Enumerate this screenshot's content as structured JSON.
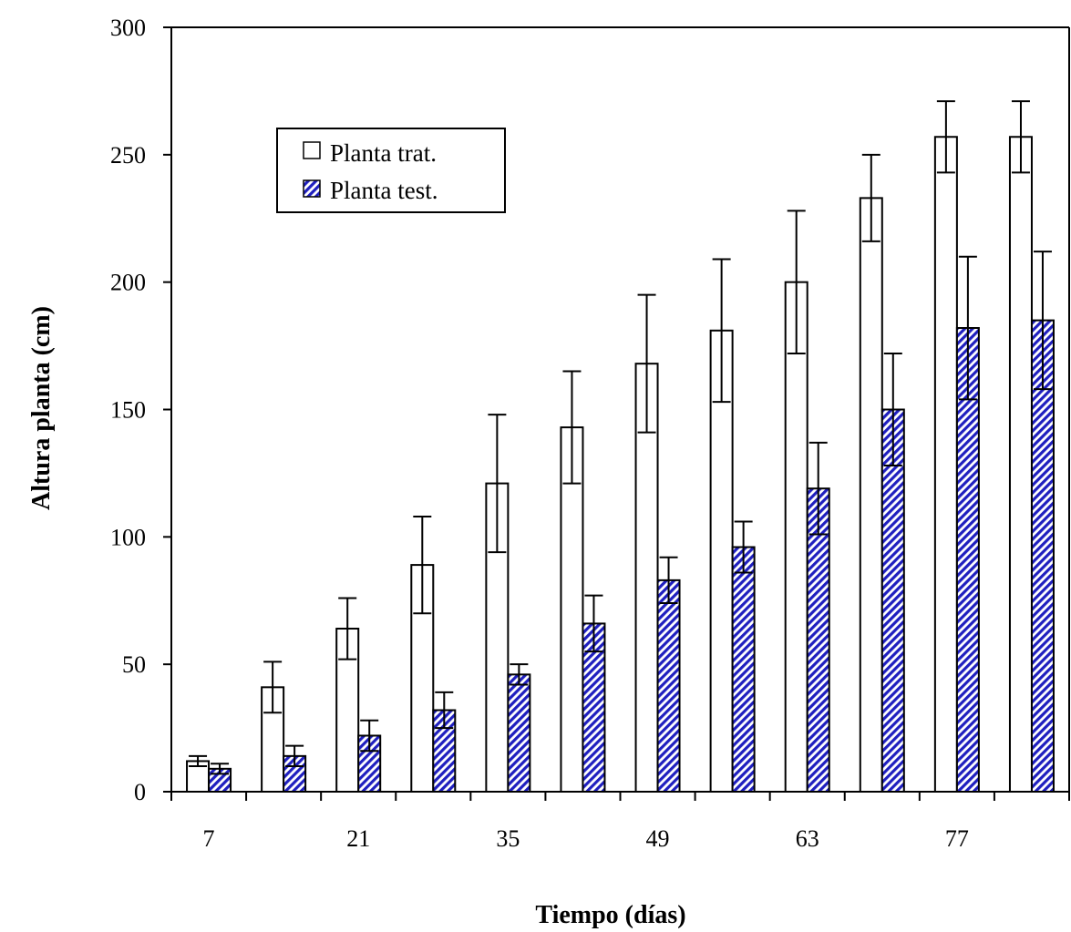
{
  "chart_data": {
    "type": "bar",
    "ylabel": "Altura  planta (cm)",
    "xlabel": "Tiempo (días)",
    "ylim": [
      0,
      300
    ],
    "yticks": [
      0,
      50,
      100,
      150,
      200,
      250,
      300
    ],
    "x_tick_labels": [
      "7",
      "",
      "21",
      "",
      "35",
      "",
      "49",
      "",
      "63",
      "",
      "77",
      ""
    ],
    "grid": false,
    "legend_position": "top-left",
    "series": [
      {
        "name": "Planta trat.",
        "fill": "white",
        "values": [
          12,
          41,
          64,
          89,
          121,
          143,
          168,
          181,
          200,
          233,
          257,
          257
        ],
        "errors": [
          2,
          10,
          12,
          19,
          27,
          22,
          27,
          28,
          28,
          17,
          14,
          14
        ]
      },
      {
        "name": "Planta test.",
        "fill": "hatched",
        "color": "#1f1fbf",
        "values": [
          9,
          14,
          22,
          32,
          46,
          66,
          83,
          96,
          119,
          150,
          182,
          185
        ],
        "errors": [
          2,
          4,
          6,
          7,
          4,
          11,
          9,
          10,
          18,
          22,
          28,
          27
        ]
      }
    ]
  }
}
